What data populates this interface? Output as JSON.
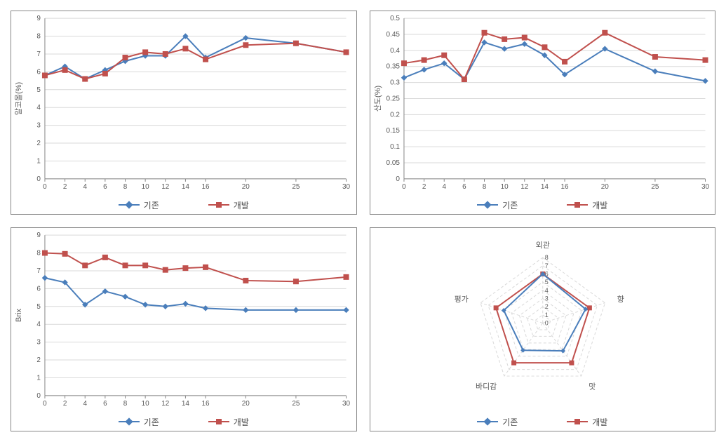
{
  "colors": {
    "series1": "#4a7ebb",
    "series1_marker": "#4a7ebb",
    "series2": "#c0504d",
    "series2_marker": "#c0504d",
    "grid": "#d9d9d9",
    "axis": "#868686",
    "text": "#595959",
    "panel_border": "#868686",
    "background": "#ffffff"
  },
  "legend": {
    "label1": "기존",
    "label2": "개발"
  },
  "charts": {
    "alcohol": {
      "type": "line",
      "ylabel": "알코올(%)",
      "x": [
        0,
        2,
        4,
        6,
        8,
        10,
        12,
        14,
        16,
        20,
        25,
        30
      ],
      "yticks": [
        0,
        1,
        2,
        3,
        4,
        5,
        6,
        7,
        8,
        9
      ],
      "ylim": [
        0,
        9
      ],
      "xlim": [
        0,
        30
      ],
      "series1": [
        5.8,
        6.3,
        5.6,
        6.1,
        6.6,
        6.9,
        6.9,
        8.0,
        6.8,
        7.9,
        7.6,
        7.1
      ],
      "series2": [
        5.8,
        6.1,
        5.6,
        5.9,
        6.8,
        7.1,
        7.0,
        7.3,
        6.7,
        7.5,
        7.6,
        7.1
      ],
      "label_fontsize": 11,
      "tick_fontsize": 10,
      "line_width": 2,
      "marker_size": 7
    },
    "acidity": {
      "type": "line",
      "ylabel": "산도(%)",
      "x": [
        0,
        2,
        4,
        6,
        8,
        10,
        12,
        14,
        16,
        20,
        25,
        30
      ],
      "yticks": [
        0,
        0.05,
        0.1,
        0.15,
        0.2,
        0.25,
        0.3,
        0.35,
        0.4,
        0.45,
        0.5
      ],
      "ylim": [
        0,
        0.5
      ],
      "xlim": [
        0,
        30
      ],
      "series1": [
        0.315,
        0.34,
        0.36,
        0.31,
        0.425,
        0.405,
        0.42,
        0.385,
        0.325,
        0.405,
        0.335,
        0.305
      ],
      "series2": [
        0.36,
        0.37,
        0.385,
        0.31,
        0.455,
        0.435,
        0.44,
        0.41,
        0.365,
        0.455,
        0.38,
        0.37
      ],
      "label_fontsize": 11,
      "tick_fontsize": 10,
      "line_width": 2,
      "marker_size": 7
    },
    "brix": {
      "type": "line",
      "ylabel": "Brix",
      "x": [
        0,
        2,
        4,
        6,
        8,
        10,
        12,
        14,
        16,
        20,
        25,
        30
      ],
      "yticks": [
        0,
        1,
        2,
        3,
        4,
        5,
        6,
        7,
        8,
        9
      ],
      "ylim": [
        0,
        9
      ],
      "xlim": [
        0,
        30
      ],
      "series1": [
        6.6,
        6.35,
        5.1,
        5.85,
        5.55,
        5.1,
        5.0,
        5.15,
        4.9,
        4.8,
        4.8,
        4.8
      ],
      "series2": [
        8.0,
        7.95,
        7.3,
        7.75,
        7.3,
        7.3,
        7.05,
        7.15,
        7.2,
        6.45,
        6.4,
        6.65
      ],
      "label_fontsize": 11,
      "tick_fontsize": 10,
      "line_width": 2,
      "marker_size": 7
    },
    "radar": {
      "type": "radar",
      "axes": [
        "외관",
        "향",
        "맛",
        "바디감",
        "평가"
      ],
      "rticks": [
        0,
        1,
        2,
        3,
        4,
        5,
        6,
        7,
        8
      ],
      "rmax": 8,
      "series1": [
        6.0,
        5.5,
        4.2,
        4.1,
        5.0
      ],
      "series2": [
        6.0,
        6.0,
        6.0,
        6.0,
        6.0
      ],
      "label_fontsize": 11,
      "tick_fontsize": 9,
      "line_width": 2,
      "marker_size": 7
    }
  }
}
